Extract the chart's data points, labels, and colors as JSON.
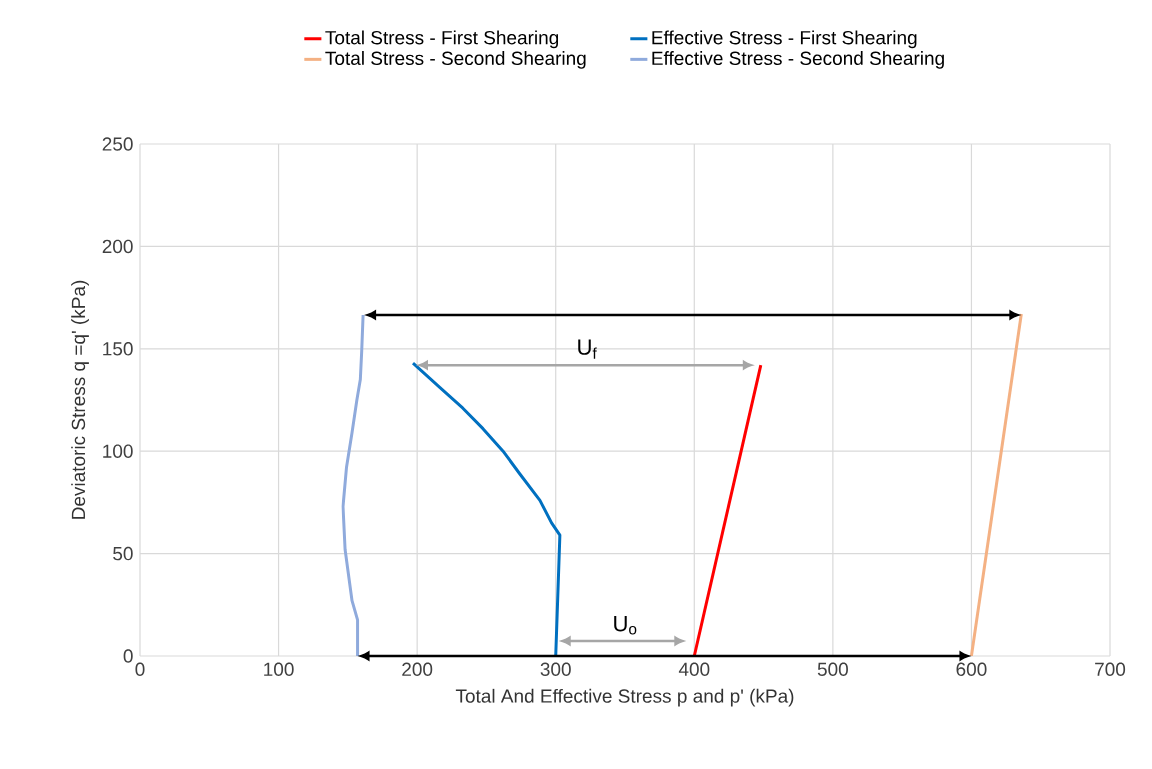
{
  "chart_data": {
    "type": "line",
    "xlabel": "Total And Effective Stress p and p' (kPa)",
    "ylabel": "Deviatoric Stress q =q' (kPa)",
    "xlim": [
      0,
      700
    ],
    "ylim": [
      0,
      250
    ],
    "xticks": [
      0,
      100,
      200,
      300,
      400,
      500,
      600,
      700
    ],
    "yticks": [
      0,
      50,
      100,
      150,
      200,
      250
    ],
    "grid": true,
    "legend": "top",
    "series": [
      {
        "name": "Total Stress - First Shearing",
        "color": "#ff0000",
        "x": [
          400,
          448
        ],
        "values": [
          0,
          142
        ]
      },
      {
        "name": "Effective Stress - First Shearing",
        "color": "#0070c0",
        "x": [
          300,
          303,
          297,
          288.6,
          274,
          262,
          247.5,
          233,
          216.5,
          197
        ],
        "values": [
          0,
          59,
          65,
          76,
          89,
          100,
          111,
          121,
          131,
          143
        ]
      },
      {
        "name": "Total Stress - Second Shearing",
        "color": "#f4b183",
        "x": [
          600,
          636
        ],
        "values": [
          0,
          167
        ]
      },
      {
        "name": "Effective Stress - Second Shearing",
        "color": "#8faadc",
        "x": [
          157,
          157,
          153,
          148,
          146.5,
          149,
          153,
          156.5,
          159,
          160,
          161
        ],
        "values": [
          0,
          17.6,
          27,
          52,
          73,
          92,
          109,
          125,
          135,
          149,
          166.5
        ]
      }
    ],
    "annotations": [
      "U$_{f}$",
      "U$_{o}$"
    ]
  }
}
